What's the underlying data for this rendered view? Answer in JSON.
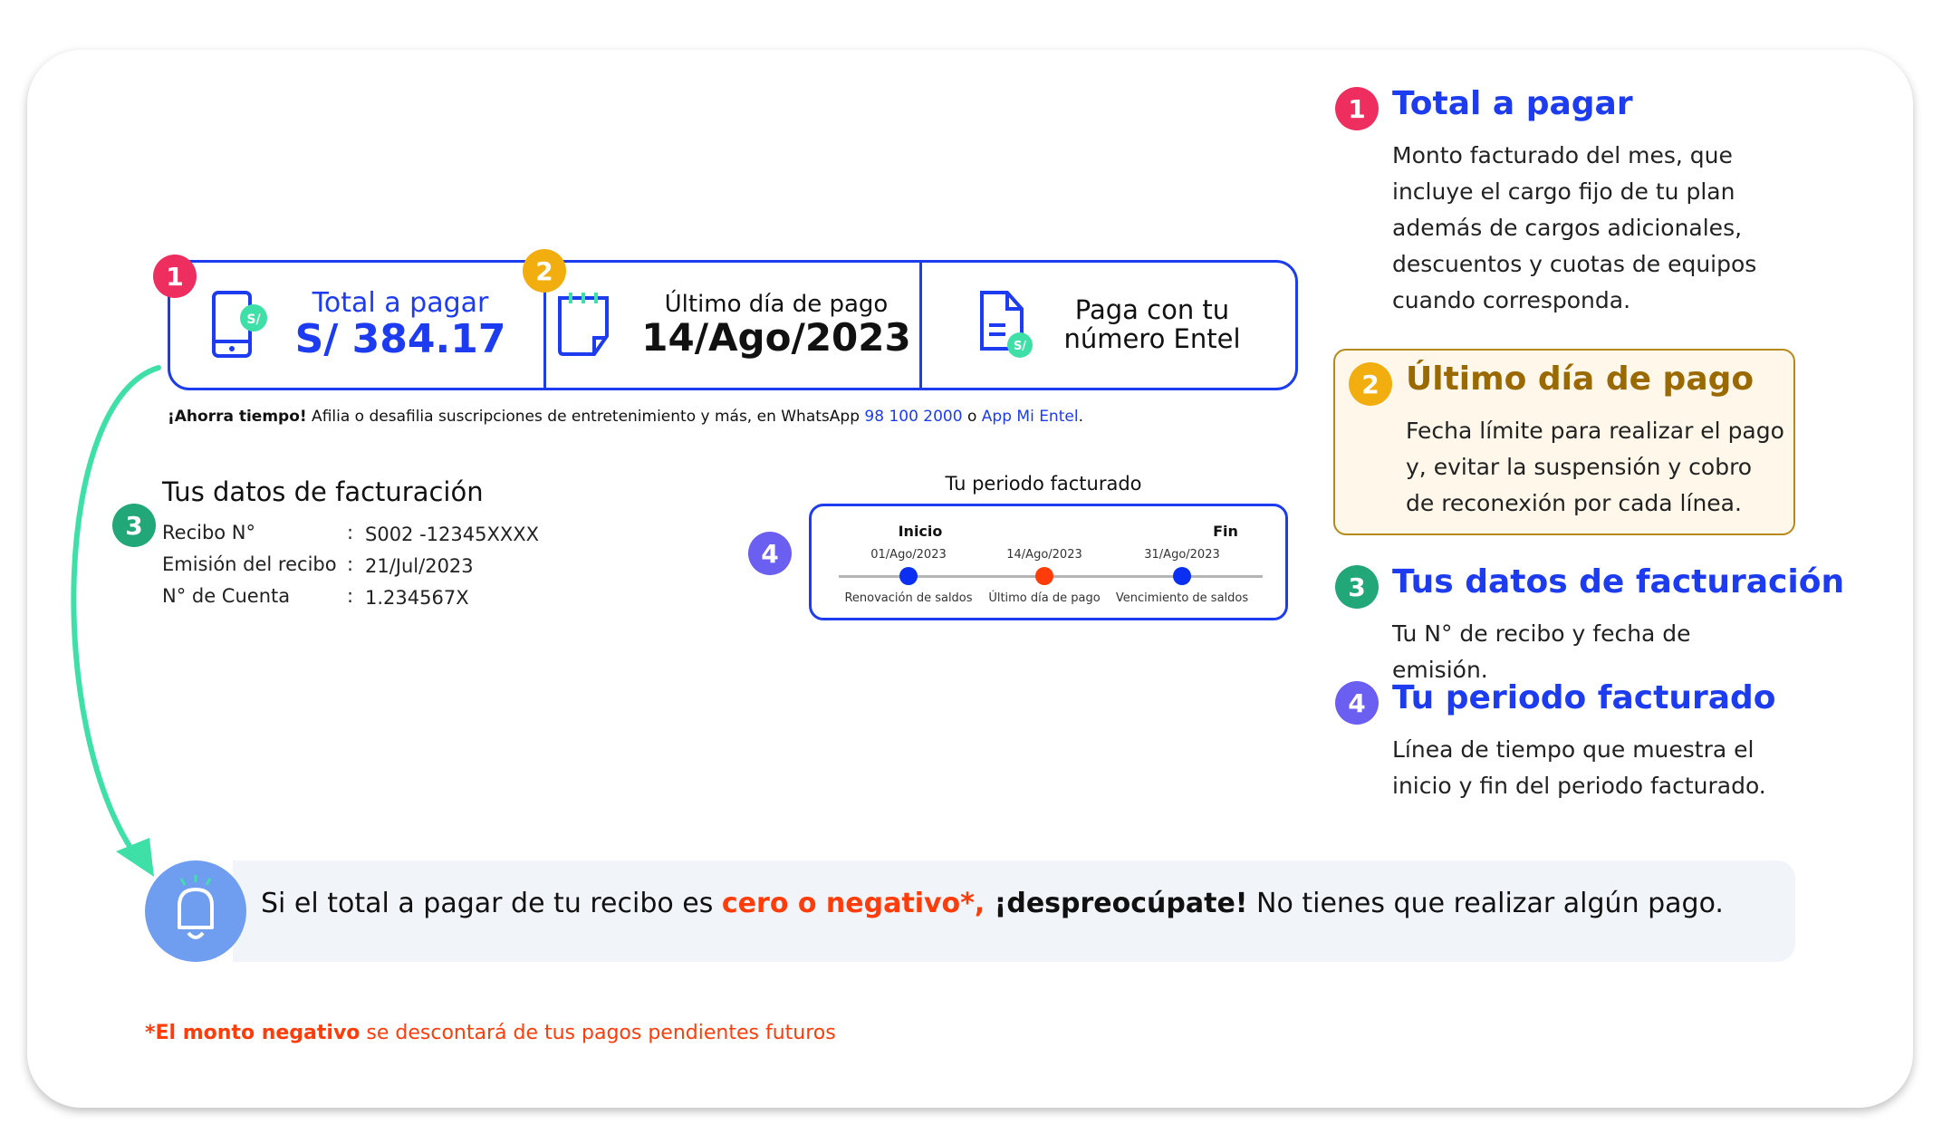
{
  "summary": {
    "total": {
      "label": "Total a pagar",
      "amount": "S/ 384.17",
      "badge": "1",
      "icon": "phone-soles-icon"
    },
    "due": {
      "label": "Último día de pago",
      "date": "14/Ago/2023",
      "badge": "2",
      "icon": "calendar-icon"
    },
    "pay": {
      "line1": "Paga con tu",
      "line2": "número Entel",
      "icon": "document-soles-icon"
    },
    "currency_badge": "S/"
  },
  "promo": {
    "bold": "¡Ahorra tiempo!",
    "text": " Afilia o desafilia suscripciones de entretenimiento y más, en WhatsApp ",
    "phone": "98 100 2000",
    "sep": " o ",
    "app": "App Mi Entel",
    "end": "."
  },
  "billing": {
    "badge": "3",
    "title": "Tus datos de facturación",
    "rows": [
      {
        "label": "Recibo N°",
        "value": "S002 -12345XXXX"
      },
      {
        "label": "Emisión del recibo",
        "value": "21/Jul/2023"
      },
      {
        "label": "N° de Cuenta",
        "value": "1.234567X"
      }
    ]
  },
  "period": {
    "badge": "4",
    "title": "Tu periodo facturado",
    "start_label": "Inicio",
    "end_label": "Fin",
    "points": [
      {
        "date": "01/Ago/2023",
        "caption": "Renovación de saldos",
        "color": "#0a2ff0"
      },
      {
        "date": "14/Ago/2023",
        "caption": "Último día de pago",
        "color": "#ff3c0a"
      },
      {
        "date": "31/Ago/2023",
        "caption": "Vencimiento de saldos",
        "color": "#0a2ff0"
      }
    ]
  },
  "legend": [
    {
      "num": "1",
      "title": "Total a pagar",
      "body": "Monto facturado del mes, que incluye el cargo fijo de tu plan además de cargos adicionales, descuentos y cuotas de equipos cuando corresponda.",
      "color": "#ee2e5f"
    },
    {
      "num": "2",
      "title": "Último día de pago",
      "body": "Fecha límite para realizar el pago y, evitar la suspensión y cobro de reconexión por cada línea.",
      "color": "#f2ad0f"
    },
    {
      "num": "3",
      "title": "Tus datos de facturación",
      "body": "Tu N° de recibo y fecha de emisión.",
      "color": "#22a779"
    },
    {
      "num": "4",
      "title": "Tu periodo facturado",
      "body": "Línea de tiempo que muestra el inicio y fin del periodo facturado.",
      "color": "#6a5ff0"
    }
  ],
  "banner": {
    "icon": "bell-icon",
    "t1": "Si el total a pagar de tu recibo es ",
    "t2": "cero o negativo*,",
    "t3": " ¡despreocúpate!",
    "t4": " No tienes que realizar algún pago."
  },
  "footnote": {
    "bold": "*El monto negativo",
    "text": " se descontará de tus pagos pendientes futuros"
  },
  "colors": {
    "blue": "#1d3cf0",
    "orange": "#ff3c0a",
    "green": "#3ee0a8"
  }
}
